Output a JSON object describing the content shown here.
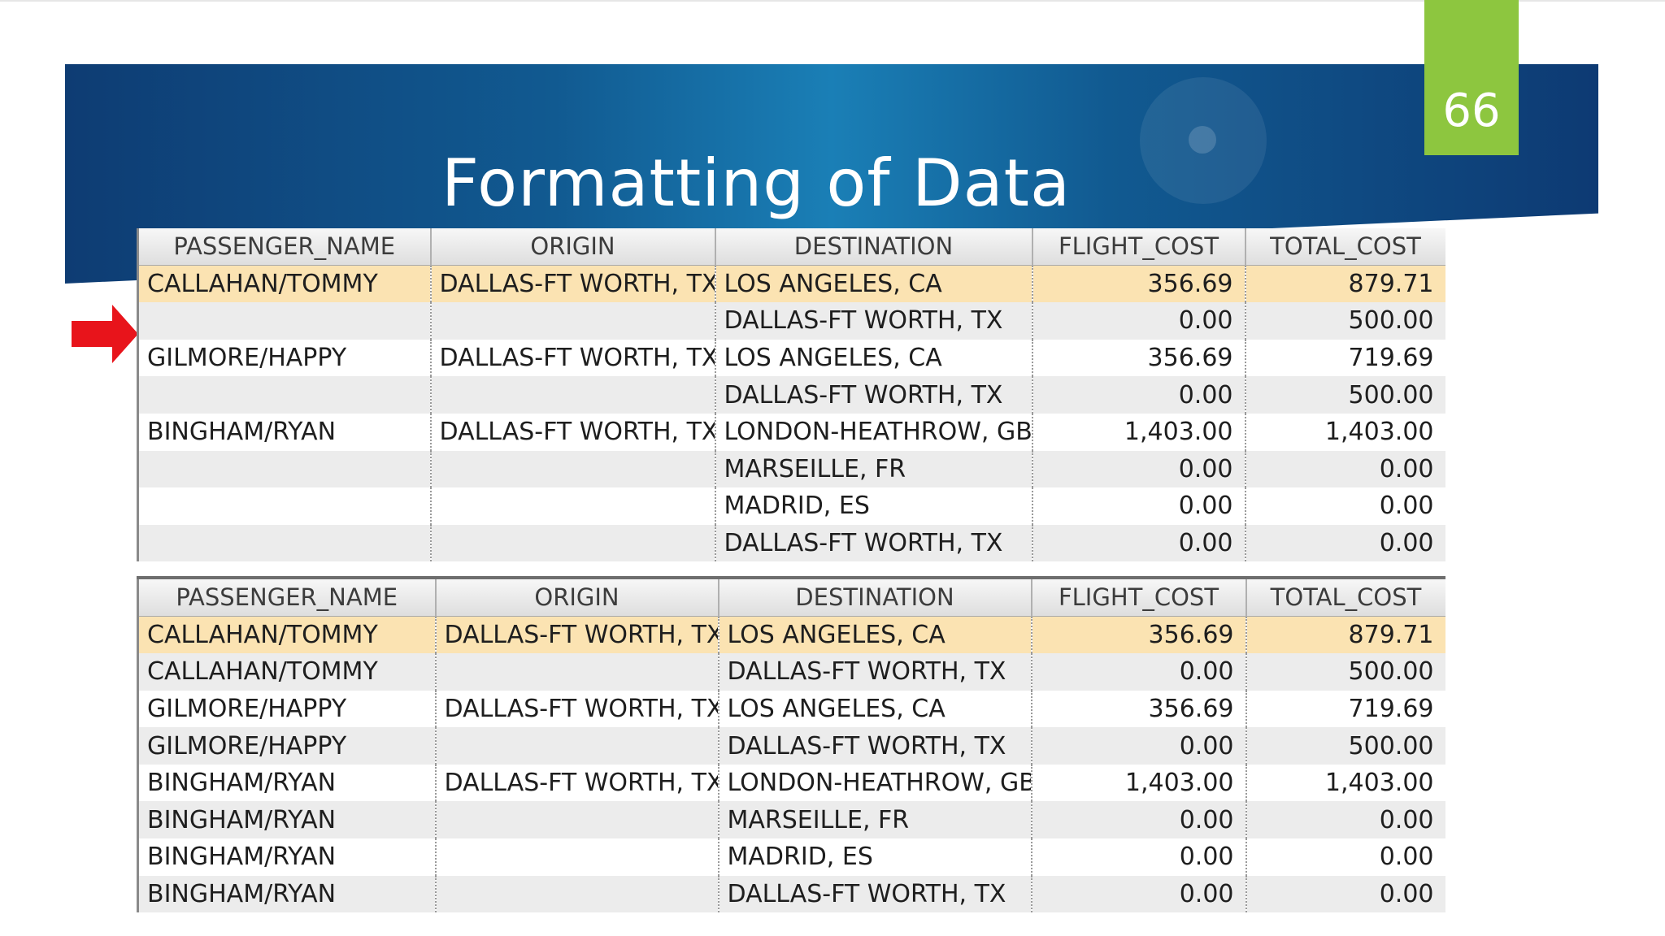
{
  "slide": {
    "title": "Formatting of Data",
    "page_number": "66"
  },
  "colors": {
    "banner_dark": "#0e3c73",
    "banner_light": "#1a7fb6",
    "page_badge": "#8dc63f",
    "arrow": "#e8141b",
    "selected_row": "#fbe3b2"
  },
  "arrow_icon": "right-arrow-icon",
  "grids": [
    {
      "columns": [
        "PASSENGER_NAME",
        "ORIGIN",
        "DESTINATION",
        "FLIGHT_COST",
        "TOTAL_COST"
      ],
      "rows": [
        [
          "CALLAHAN/TOMMY",
          "DALLAS-FT WORTH, TX",
          "LOS ANGELES, CA",
          "356.69",
          "879.71"
        ],
        [
          "",
          "",
          "DALLAS-FT WORTH, TX",
          "0.00",
          "500.00"
        ],
        [
          "GILMORE/HAPPY",
          "DALLAS-FT WORTH, TX",
          "LOS ANGELES, CA",
          "356.69",
          "719.69"
        ],
        [
          "",
          "",
          "DALLAS-FT WORTH, TX",
          "0.00",
          "500.00"
        ],
        [
          "BINGHAM/RYAN",
          "DALLAS-FT WORTH, TX",
          "LONDON-HEATHROW, GB",
          "1,403.00",
          "1,403.00"
        ],
        [
          "",
          "",
          "MARSEILLE, FR",
          "0.00",
          "0.00"
        ],
        [
          "",
          "",
          "MADRID, ES",
          "0.00",
          "0.00"
        ],
        [
          "",
          "",
          "DALLAS-FT WORTH, TX",
          "0.00",
          "0.00"
        ]
      ]
    },
    {
      "columns": [
        "PASSENGER_NAME",
        "ORIGIN",
        "DESTINATION",
        "FLIGHT_COST",
        "TOTAL_COST"
      ],
      "rows": [
        [
          "CALLAHAN/TOMMY",
          "DALLAS-FT WORTH, TX",
          "LOS ANGELES, CA",
          "356.69",
          "879.71"
        ],
        [
          "CALLAHAN/TOMMY",
          "",
          "DALLAS-FT WORTH, TX",
          "0.00",
          "500.00"
        ],
        [
          "GILMORE/HAPPY",
          "DALLAS-FT WORTH, TX",
          "LOS ANGELES, CA",
          "356.69",
          "719.69"
        ],
        [
          "GILMORE/HAPPY",
          "",
          "DALLAS-FT WORTH, TX",
          "0.00",
          "500.00"
        ],
        [
          "BINGHAM/RYAN",
          "DALLAS-FT WORTH, TX",
          "LONDON-HEATHROW, GB",
          "1,403.00",
          "1,403.00"
        ],
        [
          "BINGHAM/RYAN",
          "",
          "MARSEILLE, FR",
          "0.00",
          "0.00"
        ],
        [
          "BINGHAM/RYAN",
          "",
          "MADRID, ES",
          "0.00",
          "0.00"
        ],
        [
          "BINGHAM/RYAN",
          "",
          "DALLAS-FT WORTH, TX",
          "0.00",
          "0.00"
        ]
      ]
    }
  ]
}
